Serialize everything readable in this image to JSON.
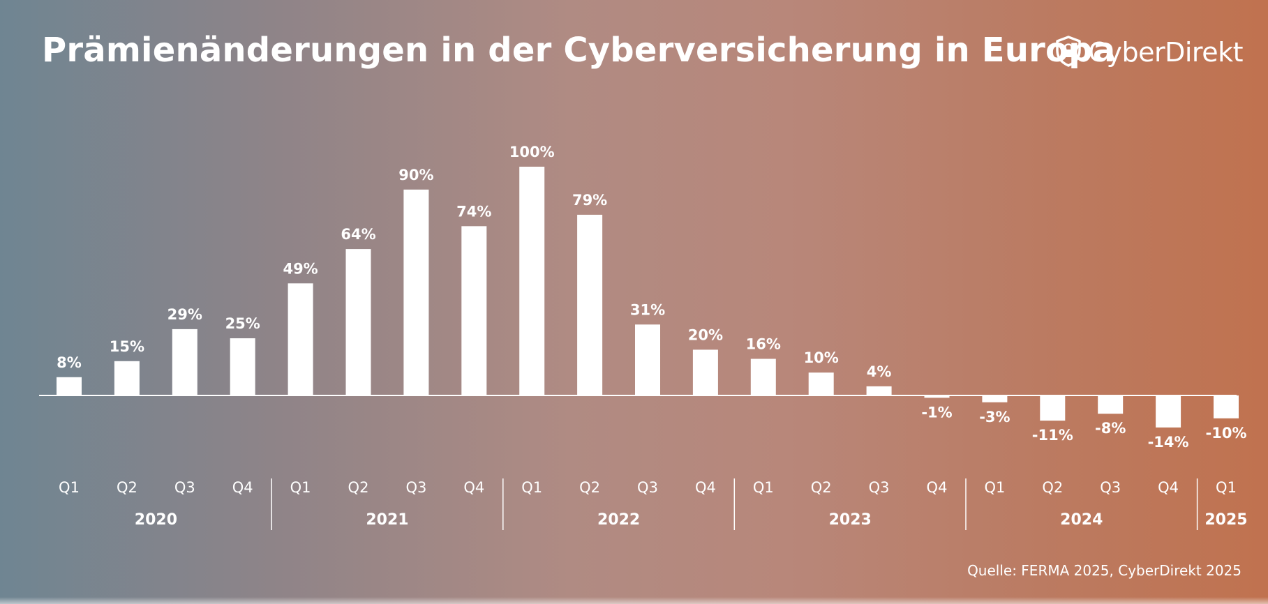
{
  "title": "Prämienänderungen in der Cyberversicherung in Europa",
  "logo": {
    "text": "CyberDirekt",
    "icon": "shield-lock-icon"
  },
  "source": "Quelle: FERMA 2025, CyberDirekt 2025",
  "colors": {
    "bar": "#ffffff",
    "text": "#ffffff",
    "gradient_left": "#6f8592",
    "gradient_right": "#c0724f"
  },
  "chart_data": {
    "type": "bar",
    "title": "Prämienänderungen in der Cyberversicherung in Europa",
    "xlabel": "",
    "ylabel": "",
    "ylim": [
      -14,
      100
    ],
    "grid": false,
    "legend": "none",
    "categories": [
      "Q1",
      "Q2",
      "Q3",
      "Q4",
      "Q1",
      "Q2",
      "Q3",
      "Q4",
      "Q1",
      "Q2",
      "Q3",
      "Q4",
      "Q1",
      "Q2",
      "Q3",
      "Q4",
      "Q1",
      "Q2",
      "Q3",
      "Q4",
      "Q1"
    ],
    "years": [
      {
        "label": "2020",
        "count": 4
      },
      {
        "label": "2021",
        "count": 4
      },
      {
        "label": "2022",
        "count": 4
      },
      {
        "label": "2023",
        "count": 4
      },
      {
        "label": "2024",
        "count": 4
      },
      {
        "label": "2025",
        "count": 1
      }
    ],
    "values": [
      8,
      15,
      29,
      25,
      49,
      64,
      90,
      74,
      100,
      79,
      31,
      20,
      16,
      10,
      4,
      -1,
      -3,
      -11,
      -8,
      -14,
      -10
    ],
    "data_labels": [
      "8%",
      "15%",
      "29%",
      "25%",
      "49%",
      "64%",
      "90%",
      "74%",
      "100%",
      "79%",
      "31%",
      "20%",
      "16%",
      "10%",
      "4%",
      "-1%",
      "-3%",
      "-11%",
      "-8%",
      "-14%",
      "-10%"
    ]
  }
}
